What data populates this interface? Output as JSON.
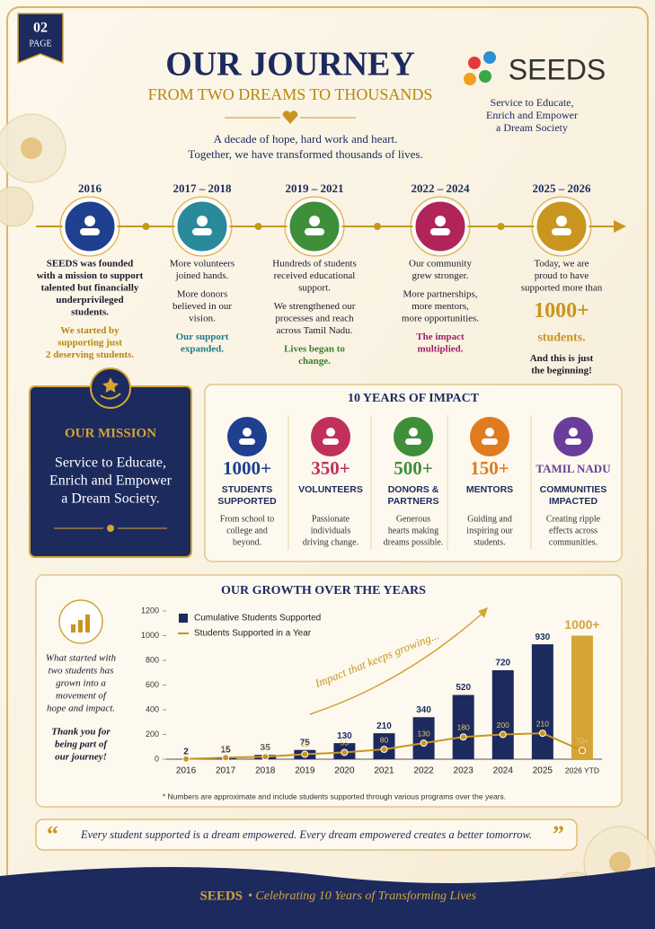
{
  "page_label": {
    "number": "02",
    "label": "PAGE"
  },
  "header": {
    "title": "OUR JOURNEY",
    "subtitle": "FROM TWO DREAMS TO THOUSANDS",
    "intro": [
      "A decade of hope, hard work and heart.",
      "Together, we have transformed thousands of lives."
    ]
  },
  "logo": {
    "name": "SEEDS",
    "tagline": [
      "Service to Educate,",
      "Enrich and Empower",
      "a Dream Society"
    ]
  },
  "timeline": [
    {
      "year": "2016",
      "color": "#1f3f8f",
      "paragraphs": [
        {
          "lines": [
            "SEEDS was founded",
            "with a mission to support",
            "talented but financially",
            "underprivileged",
            "students."
          ],
          "bold": true
        },
        {
          "lines": [
            "We started by",
            "supporting just",
            "2 deserving students."
          ],
          "color": "#b8860b"
        }
      ]
    },
    {
      "year": "2017 – 2018",
      "color": "#2a8a9a",
      "paragraphs": [
        {
          "lines": [
            "More volunteers",
            "joined hands."
          ]
        },
        {
          "lines": [
            "More donors",
            "believed in our",
            "vision."
          ]
        },
        {
          "lines": [
            "Our support",
            "expanded."
          ],
          "color": "#1f7a8c"
        }
      ]
    },
    {
      "year": "2019 – 2021",
      "color": "#3f8f3a",
      "paragraphs": [
        {
          "lines": [
            "Hundreds of students",
            "received educational",
            "support."
          ]
        },
        {
          "lines": [
            "We strengthened our",
            "processes and reach",
            "across Tamil Nadu."
          ]
        },
        {
          "lines": [
            "Lives began to",
            "change."
          ],
          "color": "#3a7d2c"
        }
      ]
    },
    {
      "year": "2022 – 2024",
      "color": "#b0245a",
      "paragraphs": [
        {
          "lines": [
            "Our community",
            "grew stronger."
          ]
        },
        {
          "lines": [
            "More partnerships,",
            "more mentors,",
            "more opportunities."
          ]
        },
        {
          "lines": [
            "The impact",
            "multiplied."
          ],
          "color": "#a0206a"
        }
      ]
    },
    {
      "year": "2025 – 2026",
      "color": "#c8961e",
      "paragraphs": [
        {
          "lines": [
            "Today, we are",
            "proud to have",
            "supported more than"
          ]
        },
        {
          "lines": [
            "1000+"
          ],
          "color": "#c8961e"
        },
        {
          "lines": [
            "students."
          ],
          "color": "#c8961e"
        },
        {
          "lines": [
            "And this is just",
            "the beginning!"
          ],
          "bold": true
        }
      ]
    }
  ],
  "mission": {
    "title": "OUR MISSION",
    "lines": [
      "Service to Educate,",
      "Enrich and Empower",
      "a Dream Society."
    ]
  },
  "impact": {
    "title": "10 YEARS OF IMPACT",
    "items": [
      {
        "number": "1000+",
        "label": [
          "STUDENTS",
          "SUPPORTED"
        ],
        "description": [
          "From school to",
          "college and",
          "beyond."
        ],
        "color": "#1f3f8f"
      },
      {
        "number": "350+",
        "label": [
          "VOLUNTEERS"
        ],
        "description": [
          "Passionate",
          "individuals",
          "driving change."
        ],
        "color": "#c0305a"
      },
      {
        "number": "500+",
        "label": [
          "DONORS &",
          "PARTNERS"
        ],
        "description": [
          "Generous",
          "hearts making",
          "dreams possible."
        ],
        "color": "#3f8f3a"
      },
      {
        "number": "150+",
        "label": [
          "MENTORS"
        ],
        "description": [
          "Guiding and",
          "inspiring our",
          "students."
        ],
        "color": "#e07b1f"
      },
      {
        "number": "TAMIL NADU",
        "label": [
          "COMMUNITIES",
          "IMPACTED"
        ],
        "description": [
          "Creating ripple",
          "effects across",
          "communities."
        ],
        "color": "#6a3d9a"
      }
    ]
  },
  "growth_panel": {
    "paragraphs": [
      [
        "What started with",
        "two students has",
        "grown into a",
        "movement of",
        "hope and impact."
      ],
      [
        "Thank you for",
        "being part of",
        "our journey!"
      ]
    ]
  },
  "chart_data": {
    "type": "bar",
    "title": "OUR GROWTH OVER THE YEARS",
    "categories": [
      "2016",
      "2017",
      "2018",
      "2019",
      "2020",
      "2021",
      "2022",
      "2023",
      "2024",
      "2025",
      "2026 YTD"
    ],
    "series": [
      {
        "name": "Cumulative Students Supported",
        "color": "#1c2a5e",
        "colors": [
          "#1c2a5e",
          "#1c2a5e",
          "#1c2a5e",
          "#1c2a5e",
          "#1c2a5e",
          "#1c2a5e",
          "#1c2a5e",
          "#1c2a5e",
          "#1c2a5e",
          "#1c2a5e",
          "#d4a437"
        ],
        "values": [
          2,
          15,
          35,
          75,
          130,
          210,
          340,
          520,
          720,
          930,
          1000
        ],
        "value_labels": [
          "2",
          "15",
          "35",
          "75",
          "130",
          "210",
          "340",
          "520",
          "720",
          "930",
          "1000+"
        ]
      },
      {
        "name": "Students Supported in a Year",
        "color": "#c8961e",
        "type": "line",
        "values": [
          2,
          13,
          20,
          40,
          55,
          80,
          130,
          180,
          200,
          210,
          70
        ],
        "value_labels": [
          null,
          "13",
          "20",
          "40",
          "55",
          "80",
          "130",
          "180",
          "200",
          "210",
          "70+"
        ]
      }
    ],
    "ylim": [
      0,
      1200
    ],
    "yticks": [
      0,
      200,
      400,
      600,
      800,
      1000,
      1200
    ],
    "annotation": "Impact that keeps growing...",
    "note": "* Numbers are approximate and include students supported through various programs over the years."
  },
  "quote": "Every student supported is a dream empowered. Every dream empowered creates a better tomorrow.",
  "footer": {
    "brand": "SEEDS",
    "text": "• Celebrating 10 Years of Transforming Lives"
  }
}
